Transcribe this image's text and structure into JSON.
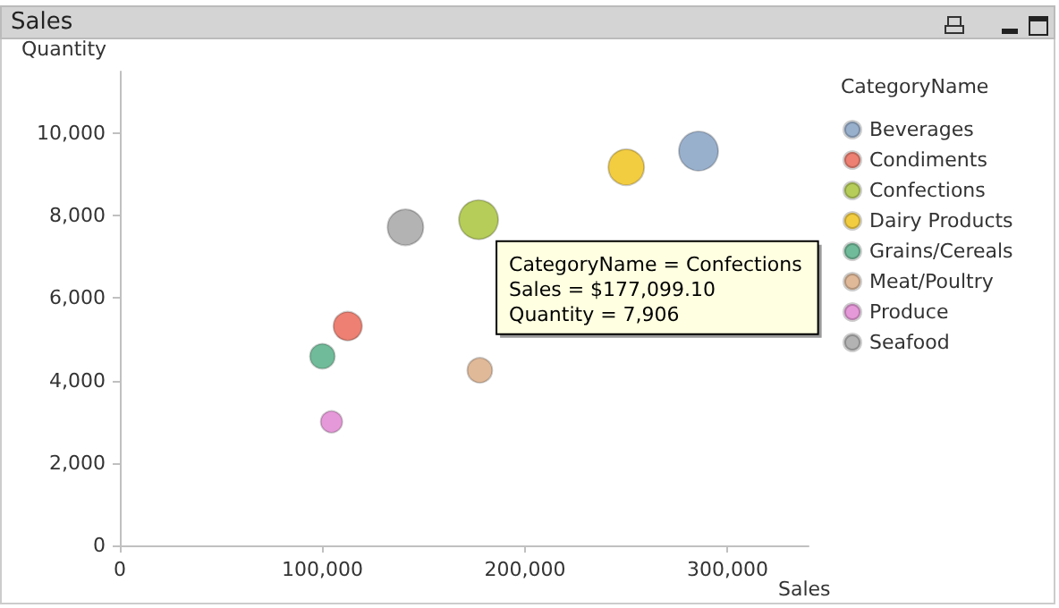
{
  "chart_data": {
    "type": "bubble",
    "title": "Sales",
    "xlabel": "Sales",
    "ylabel": "Quantity",
    "legend_title": "CategoryName",
    "series": [
      {
        "name": "Beverages",
        "color": "#7f9cc0",
        "x": [
          285700
        ],
        "values": [
          9570
        ],
        "sizes": [
          1
        ]
      },
      {
        "name": "Condiments",
        "color": "#e8604f",
        "x": [
          112500
        ],
        "values": [
          5320
        ],
        "sizes": [
          0.53
        ]
      },
      {
        "name": "Confections",
        "color": "#a4c030",
        "x": [
          177099.1
        ],
        "values": [
          7906
        ],
        "sizes": [
          1
        ]
      },
      {
        "name": "Dairy Products",
        "color": "#f0c010",
        "x": [
          250000
        ],
        "values": [
          9180
        ],
        "sizes": [
          0.83
        ]
      },
      {
        "name": "Grains/Cereals",
        "color": "#4caa80",
        "x": [
          100000
        ],
        "values": [
          4590
        ],
        "sizes": [
          0.4
        ]
      },
      {
        "name": "Meat/Poultry",
        "color": "#d8a880",
        "x": [
          177700
        ],
        "values": [
          4250
        ],
        "sizes": [
          0.4
        ]
      },
      {
        "name": "Produce",
        "color": "#e080d0",
        "x": [
          104500
        ],
        "values": [
          3000
        ],
        "sizes": [
          0.3
        ]
      },
      {
        "name": "Seafood",
        "color": "#a0a0a0",
        "x": [
          141000
        ],
        "values": [
          7720
        ],
        "sizes": [
          0.83
        ]
      }
    ],
    "annotations": [
      {
        "text": "CategoryName = Confections\nSales = $177,099.10\nQuantity = 7,906",
        "x": 177099.1,
        "y": 7906
      }
    ],
    "xlim": [
      0,
      340000
    ],
    "xticks": [
      0,
      {
        "value": 100000,
        "label": "100,000"
      },
      {
        "value": 200000,
        "label": "200,000"
      },
      {
        "value": 300000,
        "label": "300,000"
      }
    ],
    "ylim": [
      0,
      11500
    ],
    "yticks": [
      0,
      {
        "value": 2000,
        "label": "2,000"
      },
      {
        "value": 4000,
        "label": "4,000"
      },
      {
        "value": 6000,
        "label": "6,000"
      },
      {
        "value": 8000,
        "label": "8,000"
      },
      {
        "value": 10000,
        "label": "10,000"
      }
    ],
    "grid": false,
    "legend": "right",
    "marker": "circle"
  }
}
